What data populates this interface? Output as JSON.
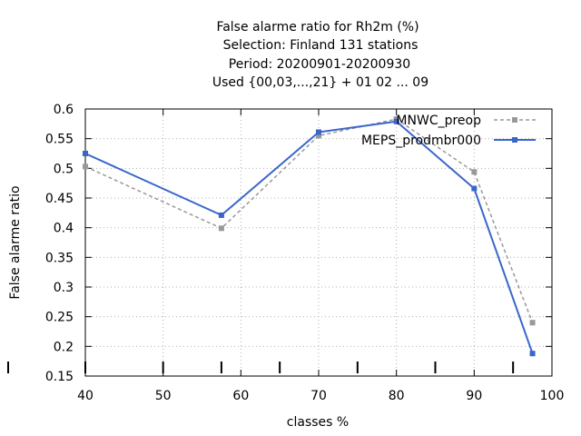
{
  "chart_data": {
    "type": "line",
    "title_lines": [
      "False alarme ratio  for Rh2m (%)",
      "Selection: Finland     131 stations",
      "Period: 20200901-20200930",
      "Used {00,03,...,21} + 01 02 ... 09"
    ],
    "xlabel": "classes %",
    "ylabel": "False alarme ratio",
    "xlim": [
      40,
      100
    ],
    "ylim": [
      0.15,
      0.6
    ],
    "x_ticks": [
      40,
      50,
      60,
      70,
      80,
      90,
      100
    ],
    "y_ticks": [
      "0.15",
      "0.2",
      "0.25",
      "0.3",
      "0.35",
      "0.4",
      "0.45",
      "0.5",
      "0.55",
      "0.6"
    ],
    "class_markers": [
      40,
      50,
      57.5,
      65,
      75,
      85,
      95
    ],
    "grid": true,
    "legend_position": "top-right",
    "series": [
      {
        "name": "MNWC_preop",
        "color": "#999999",
        "style": "dashed",
        "marker": "square",
        "x": [
          40,
          57.5,
          70,
          80,
          90,
          97.5
        ],
        "y": [
          0.503,
          0.399,
          0.555,
          0.583,
          0.494,
          0.24
        ]
      },
      {
        "name": "MEPS_prodmbr000",
        "color": "#3a66cc",
        "style": "solid",
        "marker": "square",
        "x": [
          40,
          57.5,
          70,
          80,
          90,
          97.5
        ],
        "y": [
          0.525,
          0.421,
          0.561,
          0.579,
          0.466,
          0.188
        ]
      }
    ]
  }
}
